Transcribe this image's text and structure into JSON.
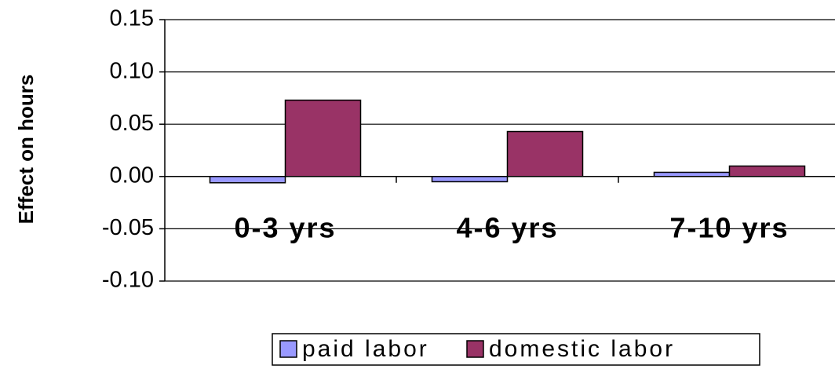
{
  "chart_data": {
    "type": "bar",
    "y_label": "Effect on hours",
    "categories": [
      "0-3 yrs",
      "4-6 yrs",
      "7-10 yrs"
    ],
    "series": [
      {
        "name": "paid labor",
        "color": "#9999ff",
        "values": [
          -0.006,
          -0.005,
          0.004
        ]
      },
      {
        "name": "domestic labor",
        "color": "#993366",
        "values": [
          0.073,
          0.043,
          0.01
        ]
      }
    ],
    "ylim": [
      -0.1,
      0.15
    ],
    "yticks": [
      {
        "value": -0.1,
        "label": "-0.10"
      },
      -0.05,
      {
        "value": 0,
        "label": "0.00"
      },
      0.05,
      {
        "value": 0.1,
        "label": "0.10"
      },
      0.15
    ],
    "grid": true
  }
}
